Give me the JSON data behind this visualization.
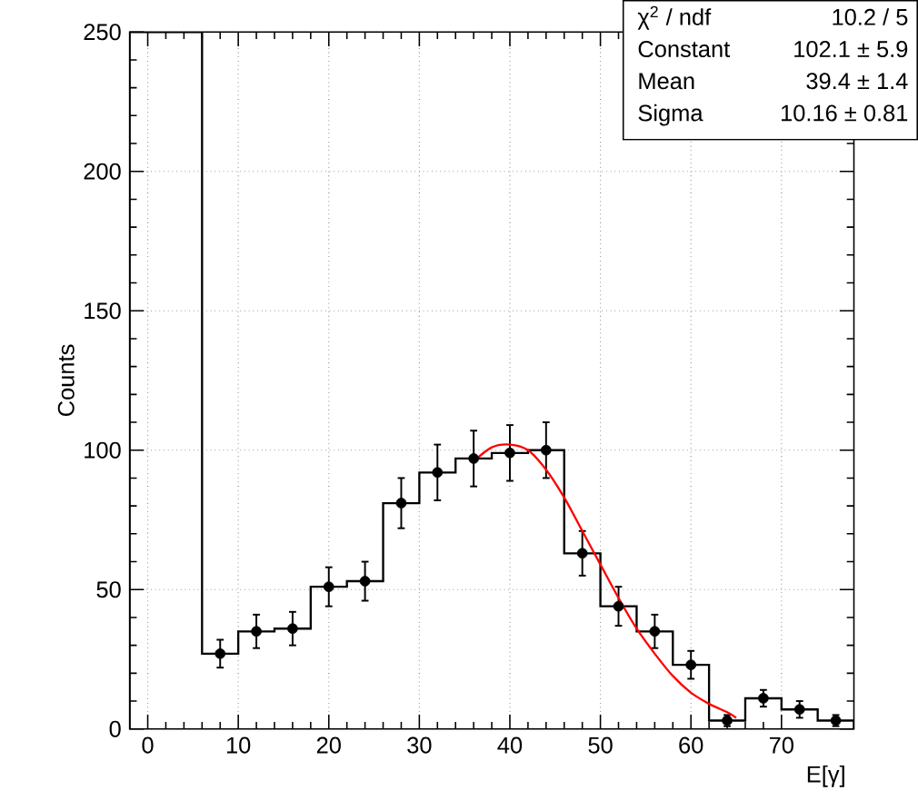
{
  "chart_data": {
    "type": "histogram",
    "xlabel": "E[γ]",
    "ylabel": "Counts",
    "xlim": [
      -2,
      78
    ],
    "ylim": [
      0,
      250
    ],
    "xticks": [
      0,
      10,
      20,
      30,
      40,
      50,
      60,
      70
    ],
    "yticks": [
      0,
      50,
      100,
      150,
      200,
      250
    ],
    "grid": true,
    "annotations": [
      "χ$^{2}$ / ndf",
      "10.2 / 5",
      "Constant",
      "102.1 ± 5.9",
      "Mean",
      "39.4 ± 1.4",
      "Sigma",
      "10.16 ± 0.81"
    ],
    "series": [
      {
        "type": "histogram",
        "color": "#000000",
        "bins": [
          -2,
          2,
          6,
          10,
          14,
          18,
          22,
          26,
          30,
          34,
          38,
          42,
          46,
          50,
          54,
          58,
          62,
          66,
          70,
          74,
          78
        ],
        "values": [
          250,
          250,
          27,
          35,
          36,
          51,
          53,
          81,
          92,
          97,
          99,
          100,
          63,
          44,
          35,
          23,
          3,
          11,
          7,
          3
        ]
      },
      {
        "type": "scatter",
        "color": "#000000",
        "marker": "circle",
        "x": [
          8,
          12,
          16,
          20,
          24,
          28,
          32,
          36,
          40,
          44,
          48,
          52,
          56,
          60,
          64,
          68,
          72,
          76
        ],
        "values": [
          27,
          35,
          36,
          51,
          53,
          81,
          92,
          97,
          99,
          100,
          63,
          44,
          35,
          23,
          3,
          11,
          7,
          3
        ],
        "errors": [
          5,
          6,
          6,
          7,
          7,
          9,
          10,
          10,
          10,
          10,
          8,
          7,
          6,
          5,
          2,
          3,
          3,
          2
        ]
      },
      {
        "type": "line",
        "color": "#ff0000",
        "marker": "none",
        "x": [
          36,
          38,
          40,
          42,
          44,
          46,
          48,
          50,
          52,
          54,
          56,
          58,
          60,
          62,
          64,
          65
        ],
        "values": [
          96,
          101,
          102,
          100,
          93,
          83,
          71,
          59,
          47,
          36,
          27,
          19,
          13,
          9,
          6,
          4
        ]
      }
    ]
  }
}
